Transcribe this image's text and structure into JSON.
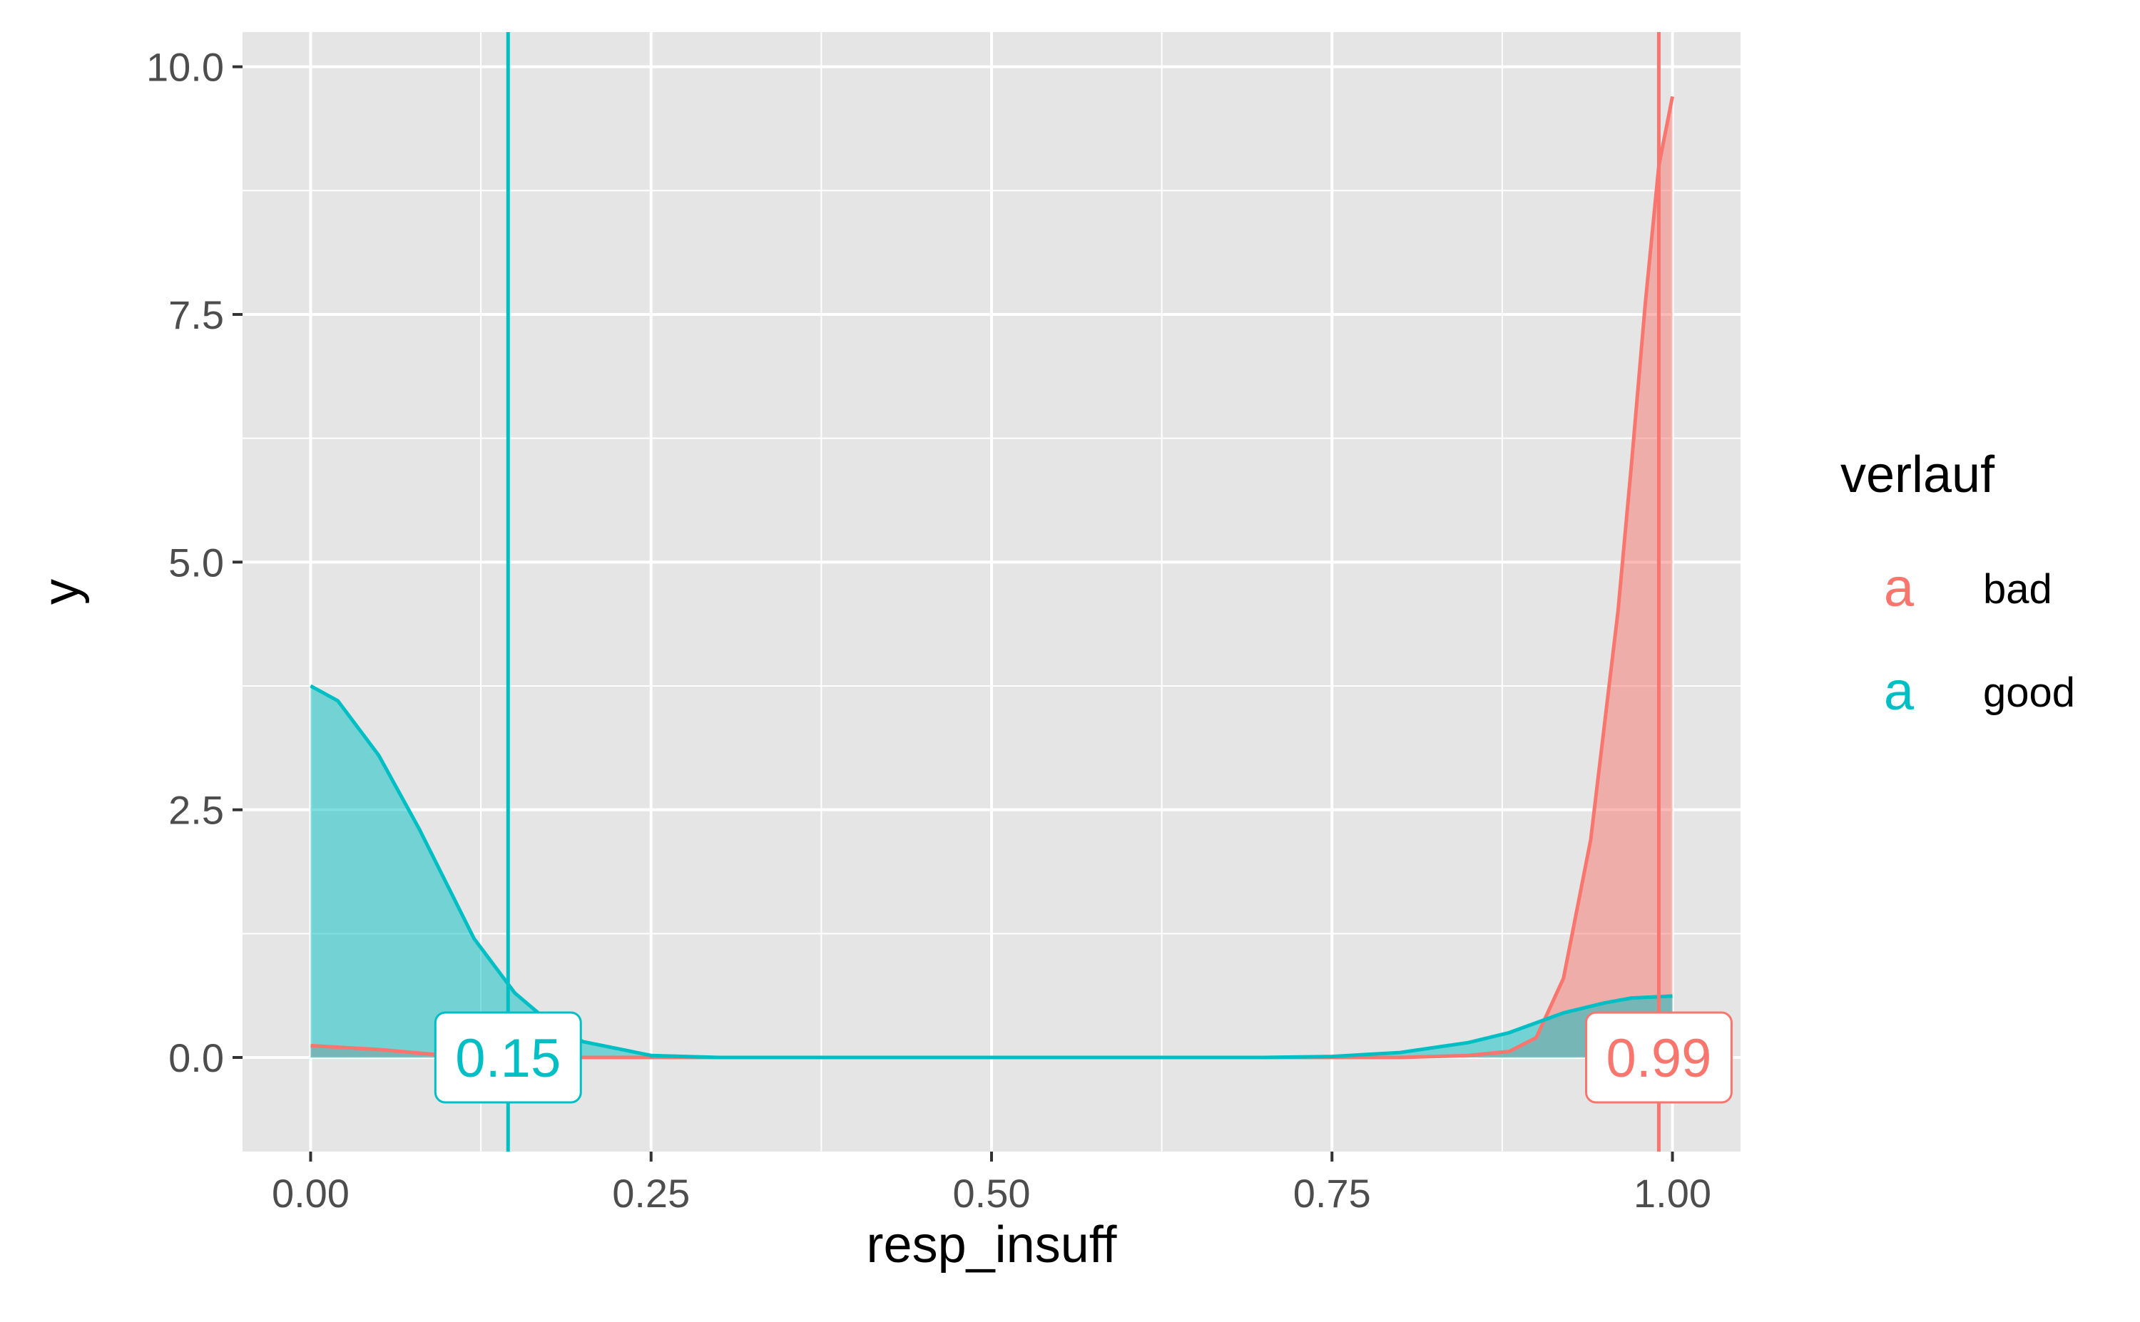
{
  "chart_data": {
    "type": "area",
    "title": "",
    "xlabel": "resp_insuff",
    "ylabel": "y",
    "xlim": [
      -0.05,
      1.05
    ],
    "ylim": [
      -0.95,
      10.35
    ],
    "x_ticks": [
      0,
      0.25,
      0.5,
      0.75,
      1
    ],
    "x_tick_labels": [
      "0.00",
      "0.25",
      "0.50",
      "0.75",
      "1.00"
    ],
    "y_ticks": [
      0,
      2.5,
      5,
      7.5,
      10
    ],
    "y_tick_labels": [
      "0.0",
      "2.5",
      "5.0",
      "7.5",
      "10.0"
    ],
    "grid": true,
    "legend": {
      "title": "verlauf",
      "placement": "right",
      "key_glyph": "a",
      "entries": [
        {
          "label": "bad",
          "color": "#F8766D"
        },
        {
          "label": "good",
          "color": "#00BFC4"
        }
      ]
    },
    "series": [
      {
        "name": "bad",
        "color": "#F8766D",
        "x": [
          0,
          0.05,
          0.1,
          0.15,
          0.2,
          0.3,
          0.5,
          0.7,
          0.8,
          0.85,
          0.88,
          0.9,
          0.92,
          0.94,
          0.96,
          0.97,
          0.98,
          0.99,
          1.0
        ],
        "y": [
          0.12,
          0.08,
          0.02,
          0.0,
          0.0,
          0.0,
          0.0,
          0.0,
          0.0,
          0.02,
          0.06,
          0.2,
          0.8,
          2.2,
          4.5,
          6.0,
          7.6,
          9.0,
          9.7
        ],
        "mean": 0.99,
        "mean_label": "0.99"
      },
      {
        "name": "good",
        "color": "#00BFC4",
        "x": [
          0,
          0.02,
          0.05,
          0.08,
          0.1,
          0.12,
          0.15,
          0.18,
          0.2,
          0.25,
          0.3,
          0.4,
          0.5,
          0.6,
          0.7,
          0.75,
          0.8,
          0.85,
          0.88,
          0.9,
          0.92,
          0.95,
          0.97,
          1.0
        ],
        "y": [
          3.75,
          3.6,
          3.05,
          2.3,
          1.75,
          1.2,
          0.65,
          0.3,
          0.16,
          0.02,
          0.0,
          0.0,
          0.0,
          0.0,
          0.0,
          0.01,
          0.05,
          0.15,
          0.25,
          0.35,
          0.45,
          0.55,
          0.6,
          0.62
        ],
        "mean": 0.145,
        "mean_label": "0.15"
      }
    ]
  }
}
